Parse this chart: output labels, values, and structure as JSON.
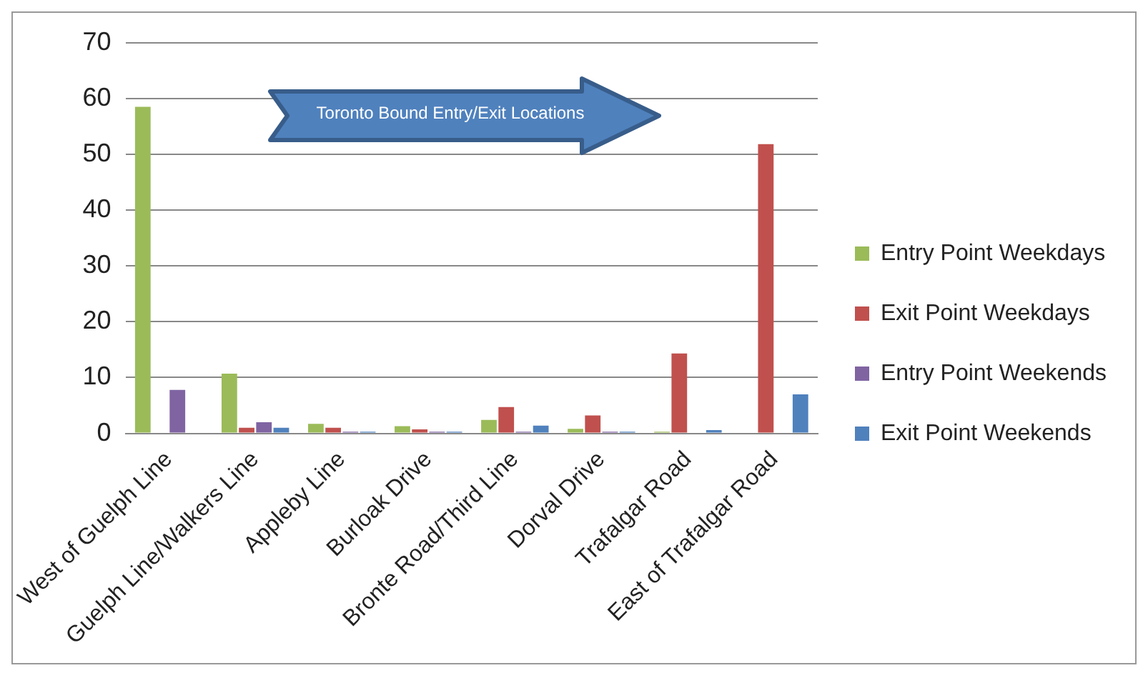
{
  "chart_data": {
    "type": "bar",
    "categories": [
      "West of Guelph Line",
      "Guelph Line/Walkers Line",
      "Appleby Line",
      "Burloak Drive",
      "Bronte Road/Third Line",
      "Dorval Drive",
      "Trafalgar Road",
      "East of Trafalgar Road"
    ],
    "series": [
      {
        "name": "Entry Point Weekdays",
        "color": "#9bbb59",
        "values": [
          58.5,
          10.7,
          1.7,
          1.3,
          2.4,
          0.8,
          0.3,
          0
        ]
      },
      {
        "name": "Exit Point Weekdays",
        "color": "#c0504d",
        "values": [
          0,
          1.0,
          1.0,
          0.7,
          4.7,
          3.2,
          14.3,
          51.8
        ]
      },
      {
        "name": "Entry Point Weekends",
        "color": "#8064a2",
        "values": [
          7.8,
          2.0,
          0.3,
          0.3,
          0.3,
          0.3,
          0,
          0
        ]
      },
      {
        "name": "Exit Point Weekends",
        "color": "#4f81bd",
        "values": [
          0,
          1.0,
          0.3,
          0.3,
          1.4,
          0.3,
          0.6,
          7.0
        ]
      }
    ],
    "ylim": [
      0,
      70
    ],
    "yticks": [
      0,
      10,
      20,
      30,
      40,
      50,
      60,
      70
    ],
    "grid": "y",
    "legend": "right",
    "annotations": [
      "Toronto Bound Entry/Exit Locations"
    ]
  }
}
